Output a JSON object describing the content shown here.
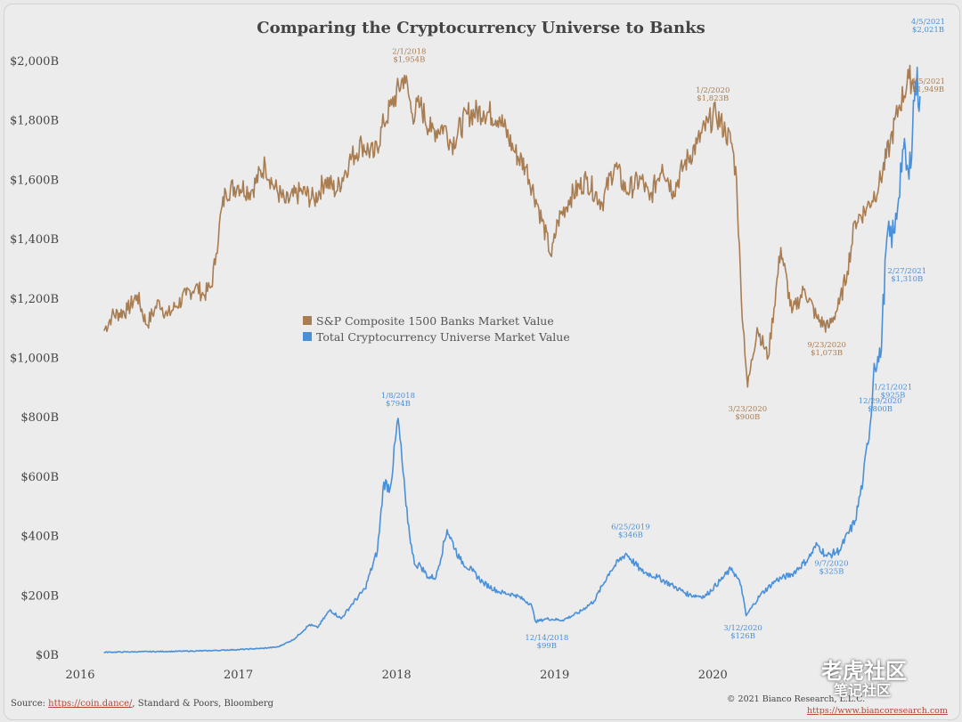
{
  "chart_data": {
    "type": "line",
    "title": "Comparing the Cryptocurrency Universe to Banks",
    "ylabel": "",
    "xlabel": "",
    "ylim": [
      0,
      2000
    ],
    "xlim": [
      2016.0,
      2021.35
    ],
    "yticks": [
      "$0B",
      "$200B",
      "$400B",
      "$600B",
      "$800B",
      "$1,000B",
      "$1,200B",
      "$1,400B",
      "$1,600B",
      "$1,800B",
      "$2,000B"
    ],
    "xticks": [
      "2016",
      "2017",
      "2018",
      "2019",
      "2020"
    ],
    "grid": false,
    "legend": "center-left",
    "series": [
      {
        "name": "S&P Composite 1500 Banks Market Value",
        "color": "#a97d52",
        "points": [
          [
            2016.15,
            1090
          ],
          [
            2016.2,
            1140
          ],
          [
            2016.3,
            1160
          ],
          [
            2016.36,
            1210
          ],
          [
            2016.42,
            1110
          ],
          [
            2016.47,
            1160
          ],
          [
            2016.5,
            1190
          ],
          [
            2016.55,
            1140
          ],
          [
            2016.6,
            1170
          ],
          [
            2016.67,
            1210
          ],
          [
            2016.73,
            1240
          ],
          [
            2016.78,
            1210
          ],
          [
            2016.83,
            1240
          ],
          [
            2016.86,
            1350
          ],
          [
            2016.88,
            1450
          ],
          [
            2016.92,
            1560
          ],
          [
            2017.0,
            1580
          ],
          [
            2017.08,
            1560
          ],
          [
            2017.17,
            1650
          ],
          [
            2017.22,
            1580
          ],
          [
            2017.3,
            1520
          ],
          [
            2017.4,
            1560
          ],
          [
            2017.48,
            1530
          ],
          [
            2017.55,
            1600
          ],
          [
            2017.62,
            1560
          ],
          [
            2017.7,
            1660
          ],
          [
            2017.78,
            1720
          ],
          [
            2017.86,
            1680
          ],
          [
            2017.92,
            1790
          ],
          [
            2017.97,
            1850
          ],
          [
            2018.05,
            1950
          ],
          [
            2018.1,
            1820
          ],
          [
            2018.15,
            1850
          ],
          [
            2018.22,
            1760
          ],
          [
            2018.3,
            1780
          ],
          [
            2018.35,
            1720
          ],
          [
            2018.45,
            1820
          ],
          [
            2018.55,
            1830
          ],
          [
            2018.65,
            1810
          ],
          [
            2018.75,
            1690
          ],
          [
            2018.82,
            1640
          ],
          [
            2018.9,
            1500
          ],
          [
            2018.98,
            1340
          ],
          [
            2019.02,
            1460
          ],
          [
            2019.1,
            1540
          ],
          [
            2019.2,
            1600
          ],
          [
            2019.3,
            1520
          ],
          [
            2019.38,
            1650
          ],
          [
            2019.45,
            1560
          ],
          [
            2019.55,
            1600
          ],
          [
            2019.6,
            1530
          ],
          [
            2019.68,
            1650
          ],
          [
            2019.75,
            1560
          ],
          [
            2019.82,
            1650
          ],
          [
            2019.9,
            1720
          ],
          [
            2019.97,
            1790
          ],
          [
            2020.02,
            1820
          ],
          [
            2020.08,
            1760
          ],
          [
            2020.12,
            1720
          ],
          [
            2020.15,
            1600
          ],
          [
            2020.18,
            1200
          ],
          [
            2020.22,
            900
          ],
          [
            2020.28,
            1100
          ],
          [
            2020.35,
            1000
          ],
          [
            2020.43,
            1370
          ],
          [
            2020.5,
            1150
          ],
          [
            2020.58,
            1230
          ],
          [
            2020.66,
            1130
          ],
          [
            2020.73,
            1100
          ],
          [
            2020.8,
            1180
          ],
          [
            2020.85,
            1290
          ],
          [
            2020.9,
            1460
          ],
          [
            2020.97,
            1500
          ],
          [
            2021.05,
            1580
          ],
          [
            2021.12,
            1720
          ],
          [
            2021.18,
            1850
          ],
          [
            2021.24,
            1940
          ],
          [
            2021.3,
            1920
          ]
        ]
      },
      {
        "name": "Total Cryptocurrency Universe Market Value",
        "color": "#4a90d9",
        "points": [
          [
            2016.15,
            7
          ],
          [
            2016.4,
            9
          ],
          [
            2016.6,
            10
          ],
          [
            2016.8,
            12
          ],
          [
            2017.0,
            16
          ],
          [
            2017.15,
            20
          ],
          [
            2017.25,
            25
          ],
          [
            2017.35,
            50
          ],
          [
            2017.45,
            100
          ],
          [
            2017.5,
            90
          ],
          [
            2017.58,
            150
          ],
          [
            2017.65,
            120
          ],
          [
            2017.72,
            170
          ],
          [
            2017.8,
            220
          ],
          [
            2017.88,
            350
          ],
          [
            2017.92,
            580
          ],
          [
            2017.96,
            560
          ],
          [
            2018.01,
            795
          ],
          [
            2018.06,
            500
          ],
          [
            2018.1,
            340
          ],
          [
            2018.12,
            300
          ],
          [
            2018.15,
            300
          ],
          [
            2018.2,
            260
          ],
          [
            2018.25,
            260
          ],
          [
            2018.32,
            420
          ],
          [
            2018.4,
            320
          ],
          [
            2018.48,
            280
          ],
          [
            2018.55,
            240
          ],
          [
            2018.65,
            210
          ],
          [
            2018.75,
            200
          ],
          [
            2018.85,
            170
          ],
          [
            2018.88,
            110
          ],
          [
            2018.95,
            120
          ],
          [
            2019.05,
            115
          ],
          [
            2019.15,
            140
          ],
          [
            2019.25,
            180
          ],
          [
            2019.35,
            280
          ],
          [
            2019.45,
            340
          ],
          [
            2019.55,
            280
          ],
          [
            2019.65,
            260
          ],
          [
            2019.75,
            230
          ],
          [
            2019.85,
            200
          ],
          [
            2019.95,
            195
          ],
          [
            2020.05,
            250
          ],
          [
            2020.12,
            290
          ],
          [
            2020.18,
            230
          ],
          [
            2020.21,
            130
          ],
          [
            2020.3,
            200
          ],
          [
            2020.4,
            250
          ],
          [
            2020.5,
            270
          ],
          [
            2020.6,
            320
          ],
          [
            2020.66,
            370
          ],
          [
            2020.72,
            330
          ],
          [
            2020.8,
            350
          ],
          [
            2020.9,
            450
          ],
          [
            2020.95,
            590
          ],
          [
            2021.0,
            800
          ],
          [
            2021.02,
            980
          ],
          [
            2021.06,
            1000
          ],
          [
            2021.1,
            1400
          ],
          [
            2021.15,
            1420
          ],
          [
            2021.2,
            1700
          ],
          [
            2021.24,
            1600
          ],
          [
            2021.28,
            1930
          ],
          [
            2021.31,
            1880
          ]
        ]
      }
    ],
    "annotations": [
      {
        "date": "2/1/2018",
        "value": "$1,954B",
        "x": 2018.08,
        "y": 1954,
        "series": 0
      },
      {
        "date": "1/2/2020",
        "value": "$1,823B",
        "x": 2020.0,
        "y": 1823,
        "series": 0
      },
      {
        "date": "3/23/2020",
        "value": "$900B",
        "x": 2020.22,
        "y": 900,
        "series": 0
      },
      {
        "date": "9/23/2020",
        "value": "$1,073B",
        "x": 2020.72,
        "y": 1073,
        "series": 0
      },
      {
        "date": "4/5/2021",
        "value": "$1,949B",
        "x": 2021.26,
        "y": 1949,
        "series": 0
      },
      {
        "date": "1/8/2018",
        "value": "$794B",
        "x": 2018.01,
        "y": 794,
        "series": 1
      },
      {
        "date": "12/14/2018",
        "value": "$99B",
        "x": 2018.95,
        "y": 99,
        "series": 1
      },
      {
        "date": "6/25/2019",
        "value": "$346B",
        "x": 2019.48,
        "y": 346,
        "series": 1
      },
      {
        "date": "3/12/2020",
        "value": "$126B",
        "x": 2020.19,
        "y": 126,
        "series": 1
      },
      {
        "date": "9/7/2020",
        "value": "$325B",
        "x": 2020.75,
        "y": 325,
        "series": 1
      },
      {
        "date": "12/29/2020",
        "value": "$800B",
        "x": 2020.99,
        "y": 800,
        "series": 1
      },
      {
        "date": "1/21/2021",
        "value": "$925B",
        "x": 2021.06,
        "y": 925,
        "series": 1
      },
      {
        "date": "2/27/2021",
        "value": "$1,310B",
        "x": 2021.16,
        "y": 1310,
        "series": 1
      },
      {
        "date": "4/5/2021",
        "value": "$2,021B",
        "x": 2021.26,
        "y": 2021,
        "series": 1
      }
    ]
  },
  "footer": {
    "source_prefix": "Source:",
    "source_link": "https://coin.dance/",
    "source_rest": ", Standard & Poors, Bloomberg",
    "copyright": "© 2021 Bianco Research, L.L.C.",
    "url": "https://www.biancoresearch.com"
  },
  "watermark": {
    "brand_cn": "老虎社区",
    "sub_cn": "笔记社区"
  }
}
